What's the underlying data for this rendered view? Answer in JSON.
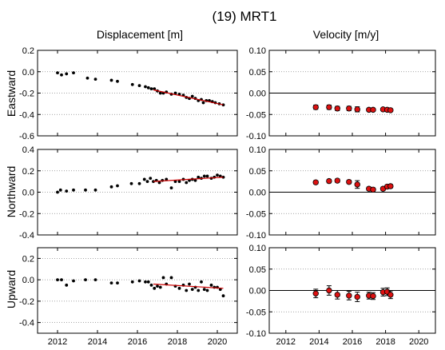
{
  "figure": {
    "title": "(19) MRT1",
    "col_titles": [
      "Displacement [m]",
      "Velocity [m/y]"
    ],
    "row_labels": [
      "Eastward",
      "Northward",
      "Upward"
    ]
  },
  "colors": {
    "points": "#000000",
    "trend": "#cc0000",
    "velocity_fill": "#dd1111",
    "zero_line": "#000000",
    "grid": "#888888"
  },
  "chart_data": [
    {
      "id": "east-displacement",
      "type": "scatter",
      "title": "Displacement [m]",
      "ylabel": "Eastward",
      "xlim": [
        2011,
        2021
      ],
      "ylim": [
        -0.6,
        0.2
      ],
      "xticks": [
        2012,
        2014,
        2016,
        2018,
        2020
      ],
      "yticks": [
        -0.6,
        -0.4,
        -0.2,
        0.0,
        0.2
      ],
      "ytick_labels": [
        "-0.6",
        "-0.4",
        "-0.2",
        "0.0",
        "0.2"
      ],
      "grid": true,
      "show_xtick_labels": false,
      "points": [
        [
          2012.0,
          -0.01
        ],
        [
          2012.2,
          -0.03
        ],
        [
          2012.45,
          -0.02
        ],
        [
          2012.8,
          -0.01
        ],
        [
          2013.5,
          -0.06
        ],
        [
          2013.9,
          -0.07
        ],
        [
          2014.7,
          -0.08
        ],
        [
          2015.0,
          -0.09
        ],
        [
          2015.75,
          -0.12
        ],
        [
          2016.1,
          -0.13
        ],
        [
          2016.4,
          -0.14
        ],
        [
          2016.55,
          -0.15
        ],
        [
          2016.7,
          -0.16
        ],
        [
          2016.85,
          -0.16
        ],
        [
          2017.0,
          -0.18
        ],
        [
          2017.15,
          -0.2
        ],
        [
          2017.3,
          -0.2
        ],
        [
          2017.45,
          -0.19
        ],
        [
          2017.7,
          -0.21
        ],
        [
          2017.9,
          -0.2
        ],
        [
          2018.1,
          -0.21
        ],
        [
          2018.3,
          -0.22
        ],
        [
          2018.45,
          -0.24
        ],
        [
          2018.6,
          -0.25
        ],
        [
          2018.75,
          -0.23
        ],
        [
          2018.9,
          -0.25
        ],
        [
          2019.05,
          -0.27
        ],
        [
          2019.2,
          -0.26
        ],
        [
          2019.3,
          -0.29
        ],
        [
          2019.45,
          -0.27
        ],
        [
          2019.6,
          -0.27
        ],
        [
          2019.75,
          -0.28
        ],
        [
          2019.9,
          -0.29
        ],
        [
          2020.1,
          -0.3
        ],
        [
          2020.3,
          -0.31
        ]
      ],
      "trend": [
        [
          2016.8,
          -0.17
        ],
        [
          2020.3,
          -0.31
        ]
      ]
    },
    {
      "id": "east-velocity",
      "type": "scatter",
      "title": "Velocity [m/y]",
      "xlim": [
        2011,
        2021
      ],
      "ylim": [
        -0.1,
        0.1
      ],
      "xticks": [
        2012,
        2014,
        2016,
        2018,
        2020
      ],
      "yticks": [
        -0.1,
        -0.05,
        0.0,
        0.05,
        0.1
      ],
      "ytick_labels": [
        "-0.10",
        "-0.05",
        "0.00",
        "0.05",
        "0.10"
      ],
      "grid": true,
      "zero_line": true,
      "show_xtick_labels": false,
      "points": [
        [
          2013.8,
          -0.033,
          0.005
        ],
        [
          2014.6,
          -0.033,
          0.005
        ],
        [
          2015.1,
          -0.036,
          0.005
        ],
        [
          2015.8,
          -0.036,
          0.005
        ],
        [
          2016.3,
          -0.038,
          0.006
        ],
        [
          2017.0,
          -0.039,
          0.003
        ],
        [
          2017.25,
          -0.039,
          0.003
        ],
        [
          2017.85,
          -0.038,
          0.003
        ],
        [
          2018.1,
          -0.039,
          0.003
        ],
        [
          2018.3,
          -0.04,
          0.003
        ]
      ]
    },
    {
      "id": "north-displacement",
      "type": "scatter",
      "ylabel": "Northward",
      "xlim": [
        2011,
        2021
      ],
      "ylim": [
        -0.4,
        0.4
      ],
      "xticks": [
        2012,
        2014,
        2016,
        2018,
        2020
      ],
      "yticks": [
        -0.4,
        -0.2,
        0.0,
        0.2,
        0.4
      ],
      "ytick_labels": [
        "-0.4",
        "-0.2",
        "0.0",
        "0.2",
        "0.4"
      ],
      "grid": true,
      "show_xtick_labels": false,
      "points": [
        [
          2012.0,
          0.0
        ],
        [
          2012.15,
          0.02
        ],
        [
          2012.45,
          0.01
        ],
        [
          2012.8,
          0.02
        ],
        [
          2013.4,
          0.02
        ],
        [
          2013.9,
          0.02
        ],
        [
          2014.7,
          0.05
        ],
        [
          2015.0,
          0.06
        ],
        [
          2015.7,
          0.08
        ],
        [
          2016.1,
          0.08
        ],
        [
          2016.35,
          0.12
        ],
        [
          2016.5,
          0.1
        ],
        [
          2016.65,
          0.13
        ],
        [
          2016.8,
          0.1
        ],
        [
          2016.95,
          0.11
        ],
        [
          2017.1,
          0.09
        ],
        [
          2017.25,
          0.11
        ],
        [
          2017.45,
          0.12
        ],
        [
          2017.7,
          0.04
        ],
        [
          2017.9,
          0.1
        ],
        [
          2018.1,
          0.1
        ],
        [
          2018.3,
          0.12
        ],
        [
          2018.45,
          0.09
        ],
        [
          2018.6,
          0.11
        ],
        [
          2018.75,
          0.12
        ],
        [
          2018.9,
          0.11
        ],
        [
          2019.05,
          0.14
        ],
        [
          2019.2,
          0.13
        ],
        [
          2019.35,
          0.15
        ],
        [
          2019.5,
          0.15
        ],
        [
          2019.7,
          0.13
        ],
        [
          2019.85,
          0.14
        ],
        [
          2020.0,
          0.16
        ],
        [
          2020.15,
          0.15
        ],
        [
          2020.3,
          0.14
        ]
      ],
      "trend": [
        [
          2016.8,
          0.1
        ],
        [
          2020.3,
          0.14
        ]
      ]
    },
    {
      "id": "north-velocity",
      "type": "scatter",
      "xlim": [
        2011,
        2021
      ],
      "ylim": [
        -0.1,
        0.1
      ],
      "xticks": [
        2012,
        2014,
        2016,
        2018,
        2020
      ],
      "yticks": [
        -0.1,
        -0.05,
        0.0,
        0.05,
        0.1
      ],
      "ytick_labels": [
        "-0.10",
        "-0.05",
        "0.00",
        "0.05",
        "0.10"
      ],
      "grid": true,
      "zero_line": true,
      "show_xtick_labels": false,
      "points": [
        [
          2013.8,
          0.023,
          0.004
        ],
        [
          2014.6,
          0.026,
          0.004
        ],
        [
          2015.1,
          0.027,
          0.004
        ],
        [
          2015.8,
          0.024,
          0.004
        ],
        [
          2016.3,
          0.018,
          0.009
        ],
        [
          2017.0,
          0.008,
          0.004
        ],
        [
          2017.25,
          0.006,
          0.004
        ],
        [
          2017.85,
          0.008,
          0.004
        ],
        [
          2018.1,
          0.013,
          0.004
        ],
        [
          2018.3,
          0.014,
          0.004
        ]
      ]
    },
    {
      "id": "up-displacement",
      "type": "scatter",
      "ylabel": "Upward",
      "xlim": [
        2011,
        2021
      ],
      "ylim": [
        -0.5,
        0.3
      ],
      "xticks": [
        2012,
        2014,
        2016,
        2018,
        2020
      ],
      "yticks": [
        -0.4,
        -0.2,
        0.0,
        0.2
      ],
      "ytick_labels": [
        "-0.4",
        "-0.2",
        "0.0",
        "0.2"
      ],
      "xtick_labels": [
        "2012",
        "2014",
        "2016",
        "2018",
        "2020"
      ],
      "grid": true,
      "show_xtick_labels": true,
      "points": [
        [
          2012.0,
          0.0
        ],
        [
          2012.2,
          0.0
        ],
        [
          2012.45,
          -0.05
        ],
        [
          2012.8,
          -0.01
        ],
        [
          2013.4,
          0.0
        ],
        [
          2013.9,
          0.0
        ],
        [
          2014.7,
          -0.03
        ],
        [
          2015.0,
          -0.03
        ],
        [
          2015.75,
          -0.02
        ],
        [
          2016.1,
          -0.01
        ],
        [
          2016.4,
          -0.02
        ],
        [
          2016.55,
          -0.02
        ],
        [
          2016.7,
          -0.05
        ],
        [
          2016.85,
          -0.08
        ],
        [
          2017.0,
          -0.06
        ],
        [
          2017.15,
          -0.07
        ],
        [
          2017.3,
          0.02
        ],
        [
          2017.45,
          -0.04
        ],
        [
          2017.7,
          0.02
        ],
        [
          2017.9,
          -0.06
        ],
        [
          2018.1,
          -0.08
        ],
        [
          2018.3,
          -0.05
        ],
        [
          2018.45,
          -0.1
        ],
        [
          2018.6,
          -0.04
        ],
        [
          2018.75,
          -0.09
        ],
        [
          2018.9,
          -0.07
        ],
        [
          2019.05,
          -0.1
        ],
        [
          2019.2,
          -0.02
        ],
        [
          2019.35,
          -0.09
        ],
        [
          2019.5,
          -0.1
        ],
        [
          2019.7,
          -0.05
        ],
        [
          2019.85,
          -0.07
        ],
        [
          2020.0,
          -0.07
        ],
        [
          2020.15,
          -0.09
        ],
        [
          2020.3,
          -0.15
        ]
      ],
      "trend": [
        [
          2016.8,
          -0.04
        ],
        [
          2020.3,
          -0.08
        ]
      ]
    },
    {
      "id": "up-velocity",
      "type": "scatter",
      "xlim": [
        2011,
        2021
      ],
      "ylim": [
        -0.1,
        0.1
      ],
      "xticks": [
        2012,
        2014,
        2016,
        2018,
        2020
      ],
      "yticks": [
        -0.1,
        -0.05,
        0.0,
        0.05,
        0.1
      ],
      "ytick_labels": [
        "-0.10",
        "-0.05",
        "0.00",
        "0.05",
        "0.10"
      ],
      "xtick_labels": [
        "2012",
        "2014",
        "2016",
        "2018",
        "2020"
      ],
      "grid": true,
      "zero_line": true,
      "show_xtick_labels": true,
      "points": [
        [
          2013.8,
          -0.007,
          0.01
        ],
        [
          2014.6,
          0.0,
          0.011
        ],
        [
          2015.1,
          -0.01,
          0.01
        ],
        [
          2015.8,
          -0.012,
          0.01
        ],
        [
          2016.3,
          -0.015,
          0.011
        ],
        [
          2017.0,
          -0.012,
          0.008
        ],
        [
          2017.25,
          -0.013,
          0.008
        ],
        [
          2017.85,
          -0.004,
          0.009
        ],
        [
          2018.1,
          -0.003,
          0.009
        ],
        [
          2018.3,
          -0.01,
          0.009
        ]
      ]
    }
  ]
}
